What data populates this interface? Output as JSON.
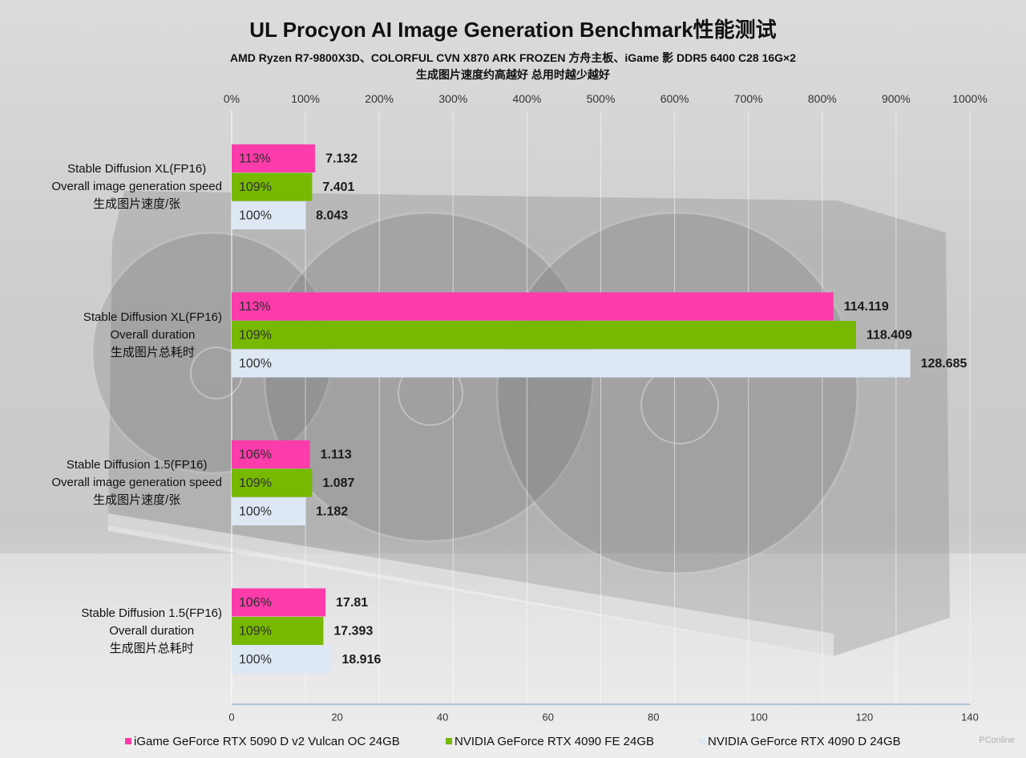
{
  "chart_data": {
    "type": "bar",
    "orientation": "horizontal",
    "title": "UL Procyon AI Image Generation Benchmark性能测试",
    "subtitle": [
      "AMD Ryzen R7-9800X3D、COLORFUL CVN X870 ARK FROZEN 方舟主板、iGame 影 DDR5 6400 C28 16G×2",
      "生成图片速度约高越好 总用时越少越好"
    ],
    "axes": {
      "top": {
        "range": [
          0,
          1000
        ],
        "ticks": [
          0,
          100,
          200,
          300,
          400,
          500,
          600,
          700,
          800,
          900,
          1000
        ],
        "unit": "%"
      },
      "bottom": {
        "range": [
          0,
          140
        ],
        "ticks": [
          0,
          20,
          40,
          60,
          80,
          100,
          120,
          140
        ]
      }
    },
    "grid": true,
    "legend_position": "bottom",
    "series": [
      {
        "name": "iGame GeForce RTX 5090 D v2 Vulcan OC 24GB",
        "color": "#fb3caa"
      },
      {
        "name": "NVIDIA GeForce RTX 4090 FE 24GB",
        "color": "#76b900"
      },
      {
        "name": "NVIDIA GeForce RTX 4090 D 24GB",
        "color": "#dde8f4"
      }
    ],
    "groups": [
      {
        "label": [
          "Stable Diffusion XL(FP16)",
          "Overall image generation speed",
          "生成图片速度/张"
        ],
        "plotted_on": "top_axis",
        "values": [
          7.132,
          7.401,
          8.043
        ],
        "percents": [
          113,
          109,
          100
        ]
      },
      {
        "label": [
          "Stable Diffusion XL(FP16)",
          "Overall duration",
          "生成图片总耗时"
        ],
        "plotted_on": "bottom_axis",
        "values": [
          114.119,
          118.409,
          128.685
        ],
        "percents": [
          113,
          109,
          100
        ]
      },
      {
        "label": [
          "Stable Diffusion 1.5(FP16)",
          "Overall image generation speed",
          "生成图片速度/张"
        ],
        "plotted_on": "top_axis",
        "values": [
          1.113,
          1.087,
          1.182
        ],
        "percents": [
          106,
          109,
          100
        ]
      },
      {
        "label": [
          "Stable Diffusion 1.5(FP16)",
          "Overall duration",
          "生成图片总耗时"
        ],
        "plotted_on": "bottom_axis",
        "values": [
          17.81,
          17.393,
          18.916
        ],
        "percents": [
          106,
          109,
          100
        ]
      }
    ]
  },
  "watermark": "PConline"
}
